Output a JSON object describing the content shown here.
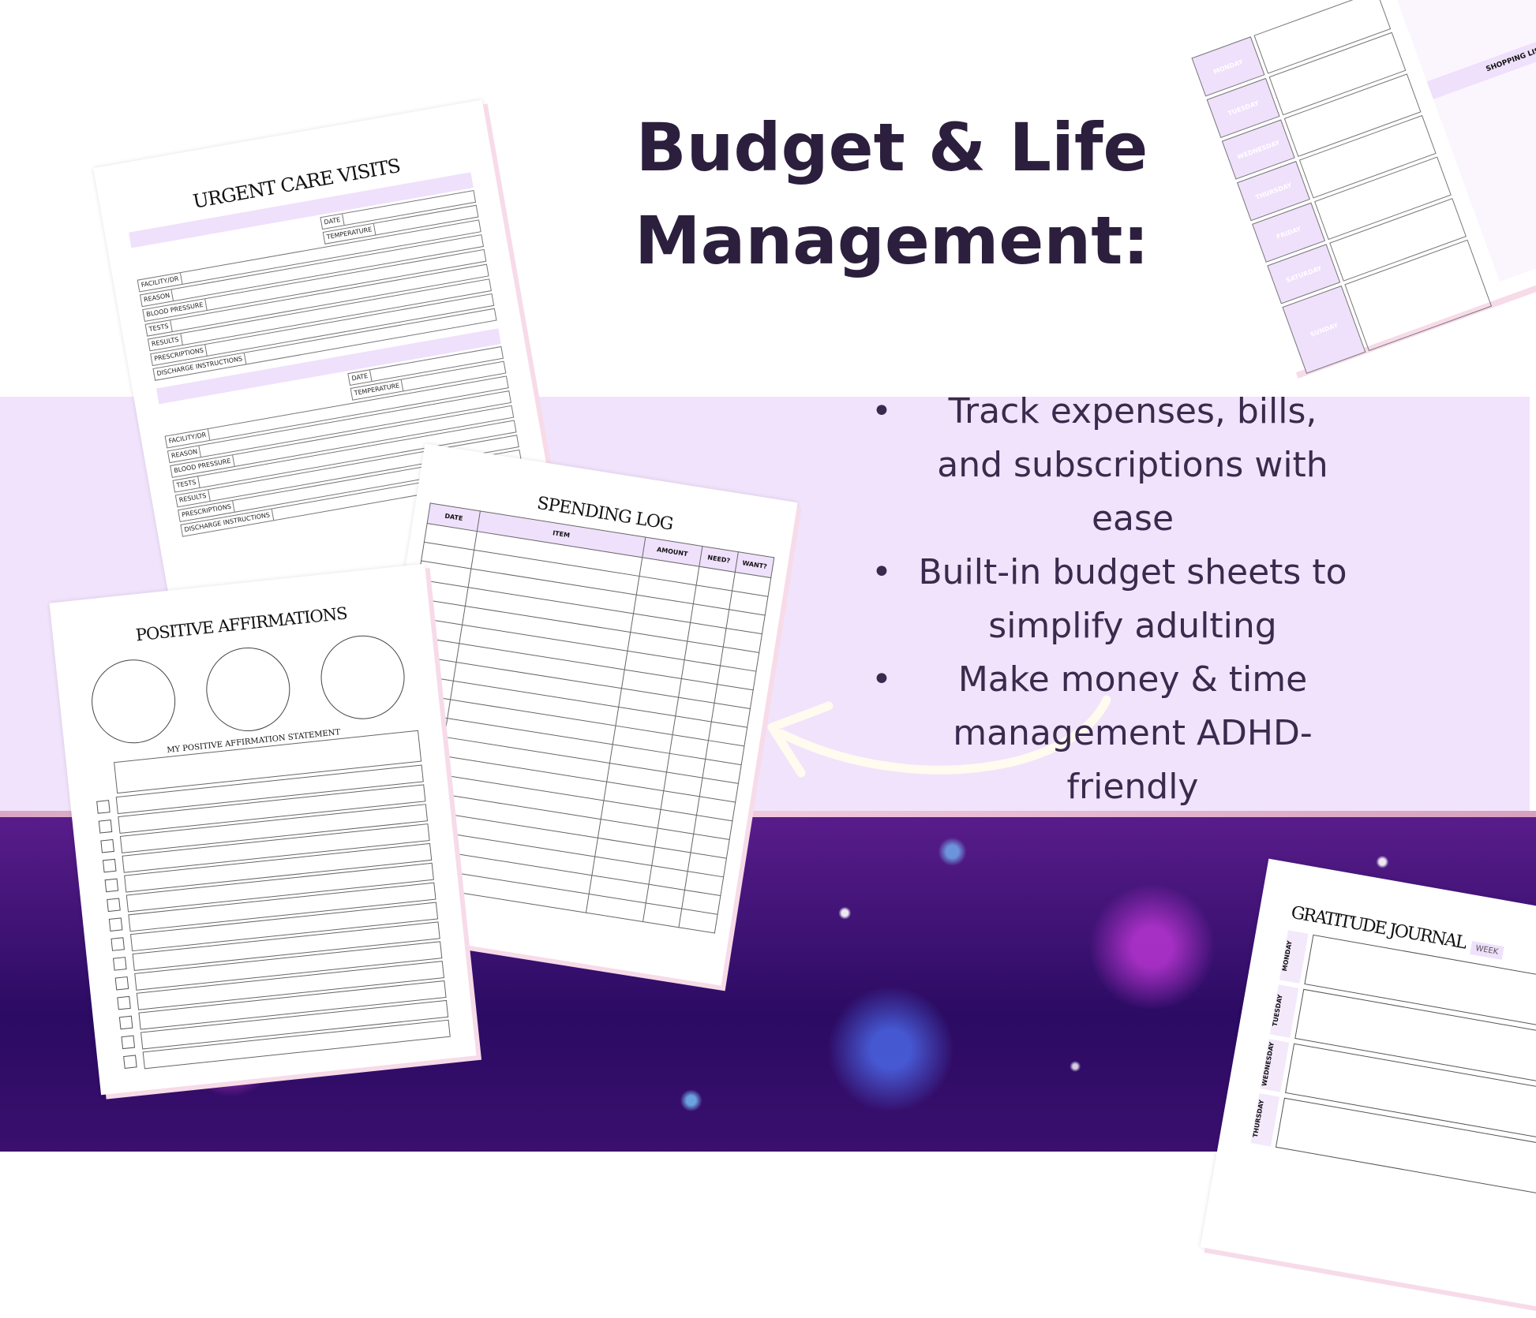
{
  "heading": {
    "line1": "Budget & Life",
    "line2": "Management:"
  },
  "bullets": [
    "Track expenses, bills, and subscriptions with ease",
    "Built-in budget sheets to simplify adulting",
    "Make money & time management ADHD-friendly"
  ],
  "bullet_glyph": "•",
  "colors": {
    "text": "#2c1f3d",
    "band": "#f1e3fb",
    "accent": "#efe0fb"
  },
  "urgent_care": {
    "title": "URGENT CARE VISITS",
    "date": "DATE",
    "temperature": "TEMPERATURE",
    "fields": [
      "FACILITY/DR",
      "REASON",
      "BLOOD PRESSURE",
      "TESTS",
      "RESULTS",
      "PRESCRIPTIONS",
      "DISCHARGE INSTRUCTIONS"
    ]
  },
  "spending_log": {
    "title": "SPENDING LOG",
    "columns": [
      "DATE",
      "ITEM",
      "AMOUNT",
      "NEED?",
      "WANT?"
    ]
  },
  "affirmations": {
    "title": "POSITIVE AFFIRMATIONS",
    "statement": "MY POSITIVE AFFIRMATION STATEMENT"
  },
  "meal_planner": {
    "days": [
      "MONDAY",
      "TUESDAY",
      "WEDNESDAY",
      "THURSDAY",
      "FRIDAY",
      "SATURDAY",
      "SUNDAY"
    ],
    "shopping": "SHOPPING LIST"
  },
  "gratitude": {
    "title": "GRATITUDE JOURNAL",
    "week": "WEEK",
    "days": [
      "MONDAY",
      "TUESDAY",
      "WEDNESDAY",
      "THURSDAY"
    ]
  }
}
